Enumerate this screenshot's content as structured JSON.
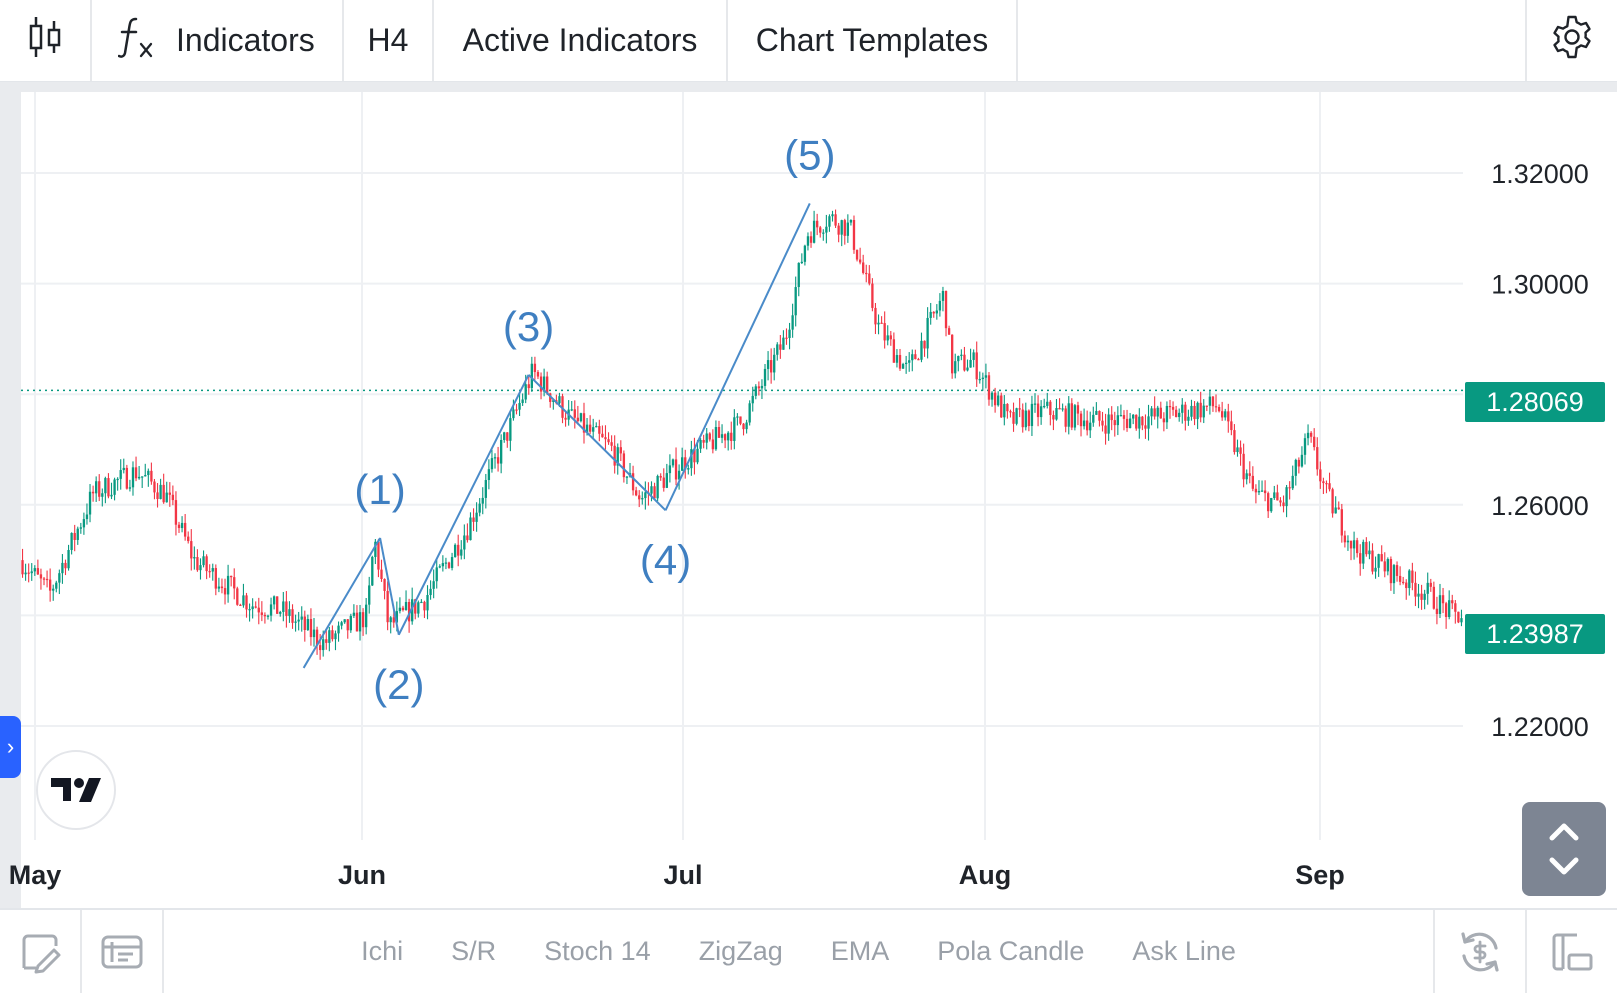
{
  "toolbar": {
    "indicators_label": "Indicators",
    "interval_label": "H4",
    "active_indicators_label": "Active Indicators",
    "chart_templates_label": "Chart Templates",
    "icons": [
      "candles-icon",
      "function-icon",
      "gear-icon"
    ]
  },
  "bottom_toolbar": {
    "chips": [
      "Ichi",
      "S/R",
      "Stoch 14",
      "ZigZag",
      "EMA",
      "Pola Candle",
      "Ask Line"
    ],
    "icons": [
      "draw-icon",
      "template-icon",
      "sync-icon",
      "layout-icon"
    ]
  },
  "colors": {
    "up": "#089981",
    "down": "#f23645",
    "wave_line": "#4a8bc9",
    "wave_label": "#3f7fc1",
    "price_badge": "#089981",
    "grid": "#eef0f3"
  },
  "chart_data": {
    "type": "candlestick",
    "interval": "H4",
    "y_ticks": [
      "1.32000",
      "1.30000",
      "1.26000",
      "1.22000"
    ],
    "x_ticks": [
      "May",
      "Jun",
      "Jul",
      "Aug",
      "Sep"
    ],
    "ylim": [
      1.2,
      1.33
    ],
    "grid": true,
    "current_price": "1.28069",
    "last_price": "1.23987",
    "series_path": [
      [
        0.0,
        1.25
      ],
      [
        0.02,
        1.244
      ],
      [
        0.05,
        1.262
      ],
      [
        0.08,
        1.266
      ],
      [
        0.1,
        1.262
      ],
      [
        0.12,
        1.25
      ],
      [
        0.14,
        1.246
      ],
      [
        0.16,
        1.242
      ],
      [
        0.18,
        1.241
      ],
      [
        0.21,
        1.235
      ],
      [
        0.24,
        1.24
      ],
      [
        0.245,
        1.254
      ],
      [
        0.255,
        1.238
      ],
      [
        0.28,
        1.243
      ],
      [
        0.31,
        1.256
      ],
      [
        0.355,
        1.284
      ],
      [
        0.38,
        1.276
      ],
      [
        0.41,
        1.27
      ],
      [
        0.43,
        1.261
      ],
      [
        0.46,
        1.268
      ],
      [
        0.5,
        1.275
      ],
      [
        0.53,
        1.29
      ],
      [
        0.545,
        1.309
      ],
      [
        0.56,
        1.312
      ],
      [
        0.575,
        1.31
      ],
      [
        0.595,
        1.292
      ],
      [
        0.615,
        1.284
      ],
      [
        0.64,
        1.298
      ],
      [
        0.645,
        1.285
      ],
      [
        0.66,
        1.286
      ],
      [
        0.685,
        1.275
      ],
      [
        0.71,
        1.277
      ],
      [
        0.75,
        1.275
      ],
      [
        0.79,
        1.276
      ],
      [
        0.83,
        1.278
      ],
      [
        0.855,
        1.262
      ],
      [
        0.875,
        1.26
      ],
      [
        0.893,
        1.272
      ],
      [
        0.905,
        1.262
      ],
      [
        0.925,
        1.252
      ],
      [
        0.95,
        1.248
      ],
      [
        0.975,
        1.244
      ],
      [
        0.993,
        1.24
      ],
      [
        1.0,
        1.24
      ]
    ],
    "elliott_wave": {
      "points": [
        {
          "label": "",
          "x": 0.196,
          "y": 1.2305
        },
        {
          "label": "(1)",
          "x": 0.249,
          "y": 1.254
        },
        {
          "label": "(2)",
          "x": 0.262,
          "y": 1.2365
        },
        {
          "label": "(3)",
          "x": 0.352,
          "y": 1.2835
        },
        {
          "label": "(4)",
          "x": 0.447,
          "y": 1.259
        },
        {
          "label": "(5)",
          "x": 0.547,
          "y": 1.3145
        }
      ]
    }
  }
}
